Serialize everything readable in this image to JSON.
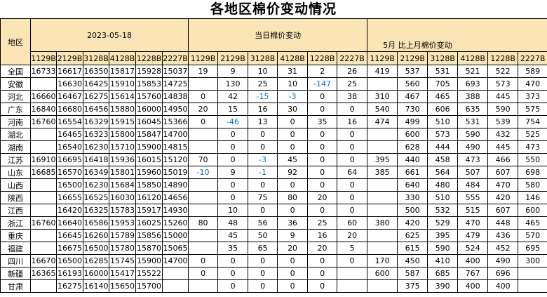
{
  "title": "各地区棉价变动情况",
  "colors": {
    "header_bg": "#FBE5B6",
    "positive_change": "#FF0000",
    "negative_change": "#0070C0",
    "grid": "#000000"
  },
  "table": {
    "region_header": "地区",
    "groups": [
      {
        "label": "2023-05-18"
      },
      {
        "label": "当日棉价变动"
      },
      {
        "label": "5月 比上月棉价变动"
      }
    ],
    "grades": [
      "1129B",
      "2129B",
      "3128B",
      "4128B",
      "1228B",
      "2227B"
    ],
    "rows": [
      {
        "region": "全国",
        "prices": [
          "16733",
          "16617",
          "16350",
          "15817",
          "15928",
          "15037"
        ],
        "daily": [
          "19",
          "9",
          "10",
          "31",
          "2",
          "26"
        ],
        "monthly": [
          "419",
          "537",
          "531",
          "521",
          "522",
          "589"
        ]
      },
      {
        "region": "安徽",
        "prices": [
          "",
          "16630",
          "16425",
          "15910",
          "15853",
          "14725"
        ],
        "daily": [
          "",
          "130",
          "25",
          "10",
          "-147",
          "25"
        ],
        "monthly": [
          "",
          "560",
          "705",
          "693",
          "573",
          "470"
        ]
      },
      {
        "region": "河北",
        "prices": [
          "16660",
          "16467",
          "16275",
          "15614",
          "15760",
          "14838"
        ],
        "daily": [
          "0",
          "42",
          "-15",
          "-3",
          "0",
          "38"
        ],
        "monthly": [
          "310",
          "467",
          "465",
          "388",
          "445",
          "373"
        ]
      },
      {
        "region": "广东",
        "prices": [
          "16840",
          "16680",
          "16456",
          "15880",
          "16000",
          "14950"
        ],
        "daily": [
          "20",
          "15",
          "16",
          "30",
          "0",
          "0"
        ],
        "monthly": [
          "540",
          "730",
          "606",
          "635",
          "590",
          "575"
        ]
      },
      {
        "region": "河南",
        "prices": [
          "16760",
          "16554",
          "16329",
          "15915",
          "16045",
          "15366"
        ],
        "daily": [
          "0",
          "-46",
          "13",
          "0",
          "35",
          "16"
        ],
        "monthly": [
          "474",
          "499",
          "510",
          "531",
          "539",
          "754"
        ]
      },
      {
        "region": "湖北",
        "prices": [
          "",
          "16465",
          "16323",
          "15800",
          "15847",
          "14700"
        ],
        "daily": [
          "",
          "0",
          "0",
          "0",
          "0",
          "0"
        ],
        "monthly": [
          "",
          "600",
          "573",
          "590",
          "432",
          "525"
        ]
      },
      {
        "region": "湖南",
        "prices": [
          "",
          "16540",
          "16230",
          "15710",
          "15900",
          "14815"
        ],
        "daily": [
          "",
          "0",
          "0",
          "0",
          "0",
          "0"
        ],
        "monthly": [
          "",
          "628",
          "444",
          "490",
          "445",
          "473"
        ]
      },
      {
        "region": "江苏",
        "prices": [
          "16910",
          "16695",
          "16418",
          "15936",
          "16015",
          "15120"
        ],
        "daily": [
          "70",
          "0",
          "-3",
          "45",
          "0",
          "0"
        ],
        "monthly": [
          "395",
          "440",
          "458",
          "473",
          "466",
          "550"
        ]
      },
      {
        "region": "山东",
        "prices": [
          "16685",
          "16570",
          "16349",
          "15801",
          "15960",
          "15019"
        ],
        "daily": [
          "-10",
          "9",
          "-1",
          "92",
          "0",
          "64"
        ],
        "monthly": [
          "385",
          "661",
          "564",
          "507",
          "607",
          "698"
        ]
      },
      {
        "region": "山西",
        "prices": [
          "",
          "16500",
          "16230",
          "15684",
          "15850",
          "14890"
        ],
        "daily": [
          "",
          "0",
          "0",
          "0",
          "0",
          "0"
        ],
        "monthly": [
          "",
          "640",
          "480",
          "484",
          "470",
          "580"
        ]
      },
      {
        "region": "陕西",
        "prices": [
          "",
          "16655",
          "16525",
          "16030",
          "16120",
          "14656"
        ],
        "daily": [
          "",
          "0",
          "75",
          "80",
          "20",
          "0"
        ],
        "monthly": [
          "",
          "330",
          "510",
          "555",
          "420",
          "146"
        ]
      },
      {
        "region": "江西",
        "prices": [
          "",
          "16420",
          "16325",
          "15783",
          "15917",
          "14930"
        ],
        "daily": [
          "",
          "10",
          "0",
          "0",
          "0",
          "0"
        ],
        "monthly": [
          "",
          "500",
          "532",
          "515",
          "607",
          "600"
        ]
      },
      {
        "region": "浙江",
        "prices": [
          "16760",
          "16640",
          "16586",
          "15953",
          "16025",
          "15260"
        ],
        "daily": [
          "80",
          "48",
          "56",
          "36",
          "25",
          "60"
        ],
        "monthly": [
          "380",
          "420",
          "529",
          "470",
          "448",
          "465"
        ]
      },
      {
        "region": "重庆",
        "prices": [
          "",
          "16645",
          "16260",
          "15789",
          "15856",
          "15000"
        ],
        "daily": [
          "",
          "45",
          "50",
          "9",
          "16",
          "20"
        ],
        "monthly": [
          "",
          "625",
          "395",
          "479",
          "436",
          "570"
        ]
      },
      {
        "region": "福建",
        "prices": [
          "",
          "16675",
          "16500",
          "15780",
          "15870",
          "15065"
        ],
        "daily": [
          "",
          "35",
          "65",
          "20",
          "20",
          "5"
        ],
        "monthly": [
          "",
          "615",
          "590",
          "524",
          "452",
          "695"
        ]
      },
      {
        "region": "四川",
        "prices": [
          "16670",
          "16500",
          "16285",
          "15745",
          "15900",
          "14700"
        ],
        "daily": [
          "0",
          "0",
          "0",
          "0",
          "0",
          "0"
        ],
        "monthly": [
          "170",
          "450",
          "410",
          "400",
          "490",
          "300"
        ]
      },
      {
        "region": "新疆",
        "prices": [
          "16365",
          "16193",
          "16000",
          "15417",
          "15522",
          ""
        ],
        "daily": [
          "0",
          "0",
          "0",
          "0",
          "0",
          ""
        ],
        "monthly": [
          "600",
          "587",
          "685",
          "767",
          "696",
          ""
        ]
      },
      {
        "region": "甘肃",
        "prices": [
          "",
          "16275",
          "16140",
          "15650",
          "15700",
          ""
        ],
        "daily": [
          "",
          "0",
          "0",
          "0",
          "0",
          ""
        ],
        "monthly": [
          "",
          "375",
          "390",
          "400",
          "400",
          ""
        ]
      }
    ]
  }
}
